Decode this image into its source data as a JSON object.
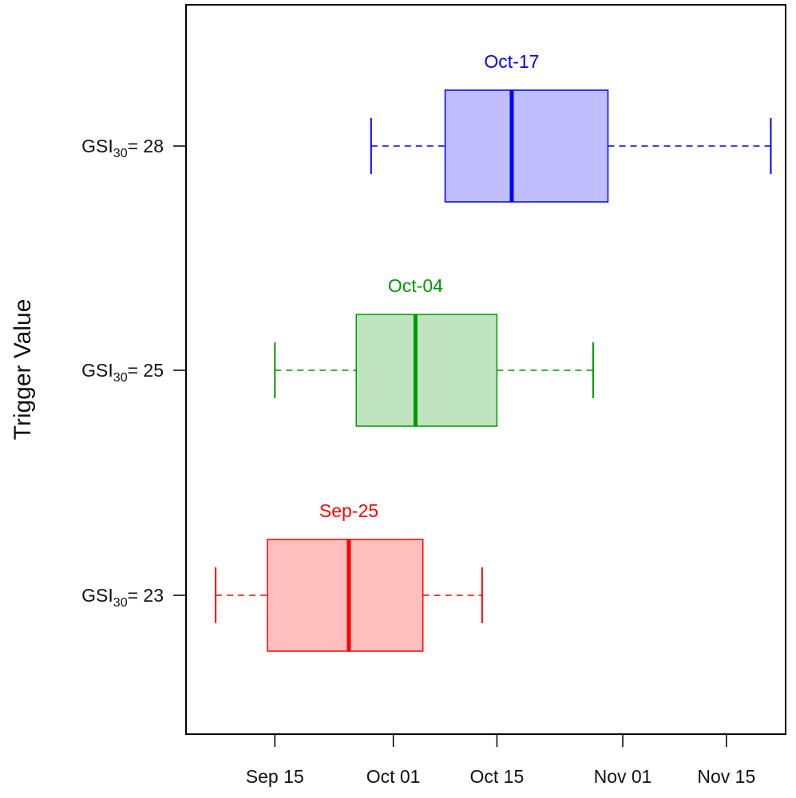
{
  "chart_data": {
    "type": "boxplot",
    "orientation": "horizontal",
    "title": "",
    "xlabel": "",
    "ylabel": "Trigger Value",
    "x_axis_type": "date",
    "xlim": [
      "2013-09-03",
      "2013-11-23"
    ],
    "x_ticks": [
      {
        "date": "2013-09-15",
        "label": "Sep 15"
      },
      {
        "date": "2013-10-01",
        "label": "Oct 01"
      },
      {
        "date": "2013-10-15",
        "label": "Oct 15"
      },
      {
        "date": "2013-11-01",
        "label": "Nov 01"
      },
      {
        "date": "2013-11-15",
        "label": "Nov 15"
      }
    ],
    "series": [
      {
        "category": {
          "base": "GSI",
          "sub": "30",
          "rest": "= 23"
        },
        "median_label": "Sep-25",
        "color": "#ff0000",
        "fill": "#ffbfbf",
        "whisker_low": "2013-09-07",
        "q1": "2013-09-14",
        "median": "2013-09-25",
        "q3": "2013-10-05",
        "whisker_high": "2013-10-13"
      },
      {
        "category": {
          "base": "GSI",
          "sub": "30",
          "rest": "= 25"
        },
        "median_label": "Oct-04",
        "color": "#009900",
        "fill": "#c0e4c0",
        "whisker_low": "2013-09-15",
        "q1": "2013-09-26",
        "median": "2013-10-04",
        "q3": "2013-10-15",
        "whisker_high": "2013-10-28"
      },
      {
        "category": {
          "base": "GSI",
          "sub": "30",
          "rest": "= 28"
        },
        "median_label": "Oct-17",
        "color": "#0000ff",
        "fill": "#bfbfff",
        "whisker_low": "2013-09-28",
        "q1": "2013-10-08",
        "median": "2013-10-17",
        "q3": "2013-10-30",
        "whisker_high": "2013-11-21"
      }
    ]
  }
}
